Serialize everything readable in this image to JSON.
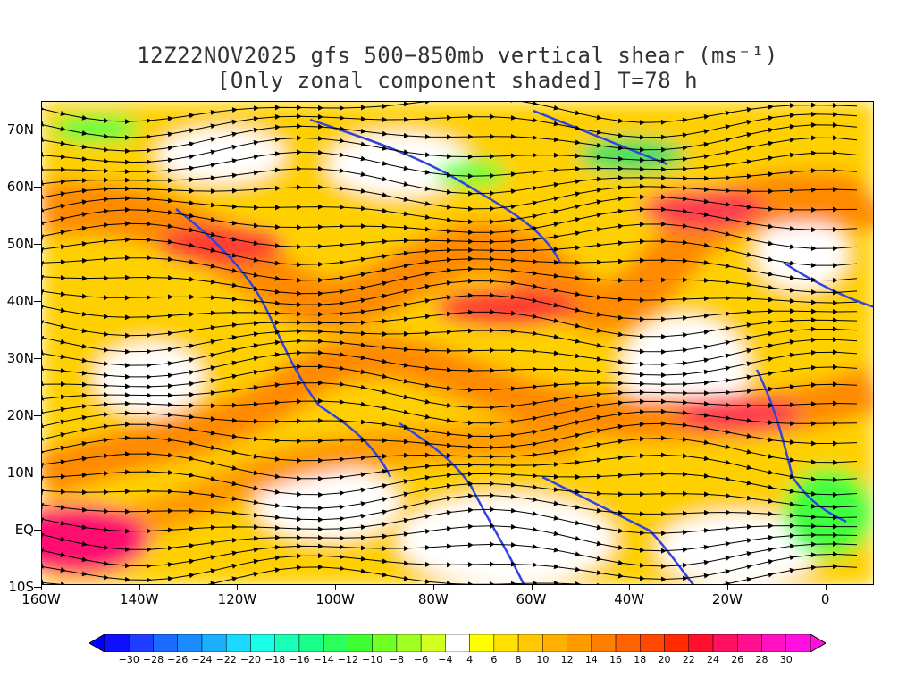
{
  "title": {
    "line1": "12Z22NOV2025 gfs 500−850mb vertical shear (ms⁻¹)",
    "line2": "[Only zonal component shaded] T=78 h"
  },
  "map": {
    "latitude_labels": [
      "70N",
      "60N",
      "50N",
      "40N",
      "30N",
      "20N",
      "10N",
      "EQ",
      "10S"
    ],
    "longitude_labels": [
      "160W",
      "140W",
      "120W",
      "100W",
      "80W",
      "60W",
      "40W",
      "20W",
      "0"
    ],
    "coastline_color": "#3344dd",
    "streamline_color": "#000000"
  },
  "colorbar": {
    "labels": [
      "−30",
      "−28",
      "−26",
      "−24",
      "−22",
      "−20",
      "−18",
      "−16",
      "−14",
      "−12",
      "−10",
      "−8",
      "−6",
      "−4",
      "4",
      "6",
      "8",
      "10",
      "12",
      "14",
      "16",
      "18",
      "20",
      "22",
      "24",
      "26",
      "28",
      "30"
    ],
    "colors": [
      "#1010ff",
      "#1f3dff",
      "#1a6bff",
      "#1a8cff",
      "#1ab0ff",
      "#1ad8ff",
      "#1affe8",
      "#1affb8",
      "#1aff8a",
      "#2aff5a",
      "#40ff30",
      "#70ff20",
      "#a0ff20",
      "#d0ff20",
      "#ffffff",
      "#ffff00",
      "#ffe000",
      "#ffc800",
      "#ffb000",
      "#ff9a00",
      "#ff8000",
      "#ff6400",
      "#ff4800",
      "#ff2a00",
      "#ff1030",
      "#ff1060",
      "#ff1090",
      "#ff10c0",
      "#ff10e0"
    ]
  }
}
